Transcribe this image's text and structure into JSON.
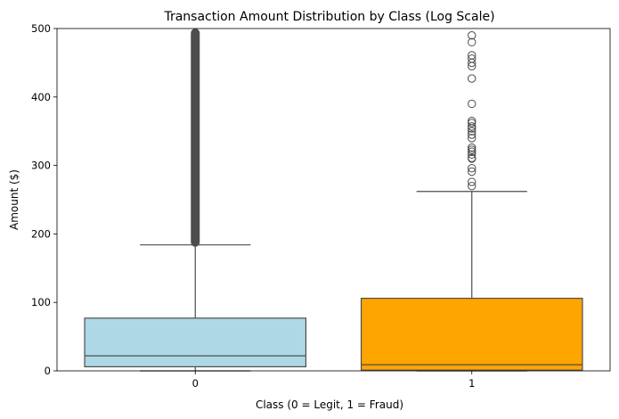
{
  "chart_data": {
    "type": "box",
    "title": "Transaction Amount Distribution by Class (Log Scale)",
    "xlabel": "Class (0 = Legit, 1 = Fraud)",
    "ylabel": "Amount ($)",
    "ylim": [
      0,
      500
    ],
    "yticks": [
      0,
      100,
      200,
      300,
      400,
      500
    ],
    "grid": false,
    "categories": [
      "0",
      "1"
    ],
    "boxes": [
      {
        "category": "0",
        "color": "#add8e6",
        "whisker_low": 0,
        "q1": 6,
        "median": 22,
        "q3": 77,
        "whisker_high": 184,
        "outliers": [],
        "outlier_band": [
          184,
          500
        ]
      },
      {
        "category": "1",
        "color": "#ffa500",
        "whisker_low": 0,
        "q1": 1,
        "median": 9,
        "q3": 106,
        "whisker_high": 262,
        "outliers": [
          270,
          276,
          291,
          296,
          310,
          311,
          316,
          320,
          323,
          326,
          340,
          345,
          350,
          354,
          357,
          362,
          365,
          390,
          427,
          445,
          450,
          456,
          461,
          480,
          490
        ],
        "outlier_band": null
      }
    ]
  }
}
